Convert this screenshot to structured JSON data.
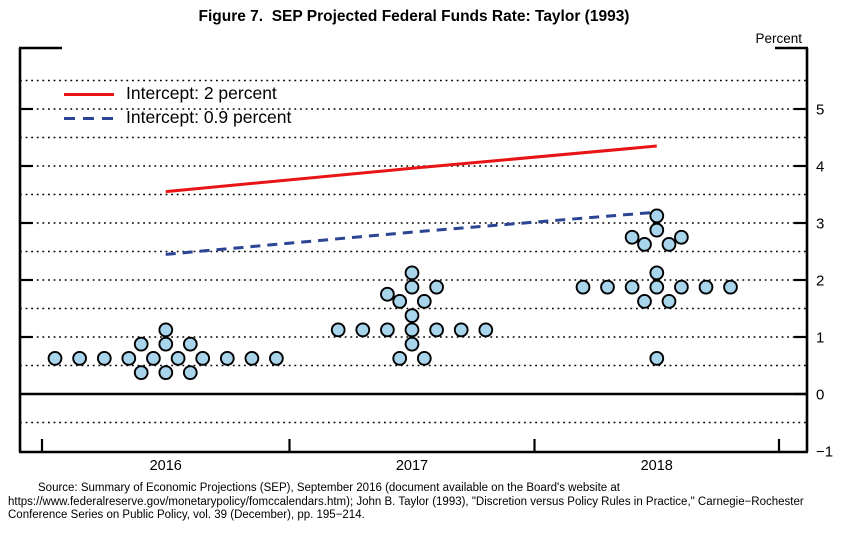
{
  "figure": {
    "title": "Figure 7.  SEP Projected Federal Funds Rate: Taylor (1993)",
    "axis_unit": "Percent",
    "legend": [
      {
        "label": "Intercept: 2 percent"
      },
      {
        "label": "Intercept: 0.9 percent"
      }
    ],
    "source_lines": [
      "Source:  Summary of Economic Projections (SEP), September 2016 (document available on the Board's website at",
      "https://www.federalreserve.gov/monetarypolicy/fomccalendars.htm); John B. Taylor (1993), \"Discretion versus Policy Rules in Practice,\" Carnegie−Rochester",
      "Conference Series on Public Policy, vol. 39 (December), pp. 195−214."
    ]
  },
  "chart_data": {
    "type": "scatter",
    "title": "Figure 7.  SEP Projected Federal Funds Rate: Taylor (1993)",
    "xlabel": "",
    "ylabel": "Percent",
    "ylim": [
      -1,
      6
    ],
    "grid": "dotted horizontal lines every 0.5",
    "legend_position": "top-left inside plot",
    "x_categories": [
      "2016",
      "2017",
      "2018"
    ],
    "y_ticks": [
      5,
      4,
      3,
      2,
      1,
      0,
      -1
    ],
    "y_tick_labels": [
      "5",
      "4",
      "3",
      "2",
      "1",
      "0",
      "−1"
    ],
    "gridlines_dotted": [
      5.5,
      5,
      4.5,
      4,
      3.5,
      3,
      2.5,
      2,
      1.5,
      1,
      0.5,
      -0.5
    ],
    "zero_line": 0,
    "series_lines": [
      {
        "name": "Intercept: 2 percent",
        "color": "#e81416",
        "style": "solid",
        "points": [
          {
            "x": "2016",
            "y": 3.55
          },
          {
            "x": "2017",
            "y": 3.96
          },
          {
            "x": "2018",
            "y": 4.35
          }
        ]
      },
      {
        "name": "Intercept: 0.9 percent",
        "color": "#2b4494",
        "style": "dashed",
        "points": [
          {
            "x": "2016",
            "y": 2.45
          },
          {
            "x": "2017",
            "y": 2.84
          },
          {
            "x": "2018",
            "y": 3.19
          }
        ]
      }
    ],
    "dot_color": "#a8d4ec",
    "dots": [
      {
        "year": "2016",
        "rows": [
          {
            "value": 1.125,
            "offsets": [
              0
            ]
          },
          {
            "value": 0.875,
            "offsets": [
              -1,
              0,
              1
            ]
          },
          {
            "value": 0.625,
            "offsets": [
              -4.5,
              -3.5,
              -2.5,
              -1.5,
              -0.5,
              0.5,
              1.5,
              2.5,
              3.5,
              4.5
            ]
          },
          {
            "value": 0.375,
            "offsets": [
              -1,
              0,
              1
            ]
          }
        ]
      },
      {
        "year": "2017",
        "rows": [
          {
            "value": 2.125,
            "offsets": [
              0
            ]
          },
          {
            "value": 1.875,
            "offsets": [
              0,
              1
            ]
          },
          {
            "value": 1.75,
            "offsets": [
              -1
            ]
          },
          {
            "value": 1.625,
            "offsets": [
              -0.5,
              0.5
            ]
          },
          {
            "value": 1.375,
            "offsets": [
              0
            ]
          },
          {
            "value": 1.125,
            "offsets": [
              -3,
              -2,
              -1,
              0,
              1,
              2,
              3
            ]
          },
          {
            "value": 0.875,
            "offsets": [
              0
            ]
          },
          {
            "value": 0.625,
            "offsets": [
              -0.5,
              0.5
            ]
          }
        ]
      },
      {
        "year": "2018",
        "rows": [
          {
            "value": 3.125,
            "offsets": [
              0
            ]
          },
          {
            "value": 2.875,
            "offsets": [
              0
            ]
          },
          {
            "value": 2.75,
            "offsets": [
              -1,
              1
            ]
          },
          {
            "value": 2.625,
            "offsets": [
              -0.5,
              0.5
            ]
          },
          {
            "value": 2.125,
            "offsets": [
              0
            ]
          },
          {
            "value": 1.875,
            "offsets": [
              -3,
              -2,
              -1,
              0,
              1,
              2,
              3
            ]
          },
          {
            "value": 1.625,
            "offsets": [
              -0.5,
              0.5
            ]
          },
          {
            "value": 0.625,
            "offsets": [
              0
            ]
          }
        ]
      }
    ]
  }
}
